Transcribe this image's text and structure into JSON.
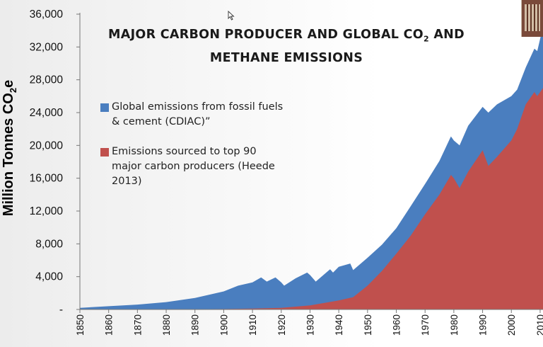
{
  "title_line1": "MAJOR CARBON PRODUCER AND GLOBAL CO",
  "title_sub": "2",
  "title_line1_end": " AND",
  "title_line2": "METHANE EMISSIONS",
  "ylabel_main": "Million Tonnes CO",
  "ylabel_sub1": "2",
  "ylabel_sub2": "e",
  "legend": [
    {
      "line1": "Global emissions from fossil fuels",
      "line2": "& cement (CDIAC)”",
      "line3": "",
      "color": "#4a7ebf"
    },
    {
      "line1": "Emissions sourced  to top 90",
      "line2": "major carbon producers (Heede",
      "line3": "2013)",
      "color": "#c0504d"
    }
  ],
  "chart_data": {
    "type": "area",
    "title": "MAJOR CARBON PRODUCER AND GLOBAL CO2 AND METHANE EMISSIONS",
    "ylabel": "Million Tonnes CO2e",
    "ylim": [
      0,
      36000
    ],
    "xlim": [
      1850,
      2011
    ],
    "yticks": [
      "-",
      "4,000",
      "8,000",
      "12,000",
      "16,000",
      "20,000",
      "24,000",
      "28,000",
      "32,000",
      "36,000"
    ],
    "xticks": [
      "1850",
      "1860",
      "1870",
      "1880",
      "1890",
      "1900",
      "1910",
      "1920",
      "1930",
      "1940",
      "1950",
      "1960",
      "1970",
      "1980",
      "1990",
      "2000",
      "2010"
    ],
    "series": [
      {
        "name": "Global emissions from fossil fuels & cement (CDIAC)”",
        "color": "#4a7ebf",
        "x": [
          1850,
          1860,
          1870,
          1880,
          1890,
          1900,
          1905,
          1910,
          1913,
          1915,
          1918,
          1920,
          1921,
          1925,
          1929,
          1930,
          1932,
          1937,
          1938,
          1940,
          1944,
          1945,
          1950,
          1955,
          1960,
          1965,
          1970,
          1975,
          1979,
          1980,
          1982,
          1985,
          1990,
          1992,
          1995,
          2000,
          2002,
          2005,
          2008,
          2009,
          2011
        ],
        "values": [
          200,
          400,
          600,
          900,
          1400,
          2200,
          2900,
          3300,
          3900,
          3400,
          3900,
          3300,
          2900,
          3800,
          4500,
          4200,
          3400,
          4900,
          4500,
          5200,
          5600,
          4800,
          6300,
          7900,
          9900,
          12600,
          15300,
          18100,
          21100,
          20600,
          20000,
          22400,
          24700,
          24000,
          25000,
          26000,
          26800,
          29500,
          31800,
          31500,
          34500
        ]
      },
      {
        "name": "Emissions sourced  to top 90 major carbon producers (Heede 2013)",
        "color": "#c0504d",
        "x": [
          1850,
          1880,
          1900,
          1910,
          1920,
          1930,
          1940,
          1945,
          1950,
          1955,
          1960,
          1965,
          1970,
          1975,
          1979,
          1980,
          1982,
          1985,
          1990,
          1992,
          1995,
          2000,
          2002,
          2005,
          2008,
          2009,
          2011
        ],
        "values": [
          0,
          20,
          50,
          100,
          200,
          500,
          1100,
          1500,
          2900,
          4700,
          6800,
          9000,
          11600,
          14000,
          16400,
          16000,
          14800,
          16800,
          19400,
          17500,
          18600,
          20600,
          22000,
          25000,
          26500,
          26000,
          27000
        ]
      }
    ],
    "grid": false,
    "legend_position": "upper-left"
  }
}
